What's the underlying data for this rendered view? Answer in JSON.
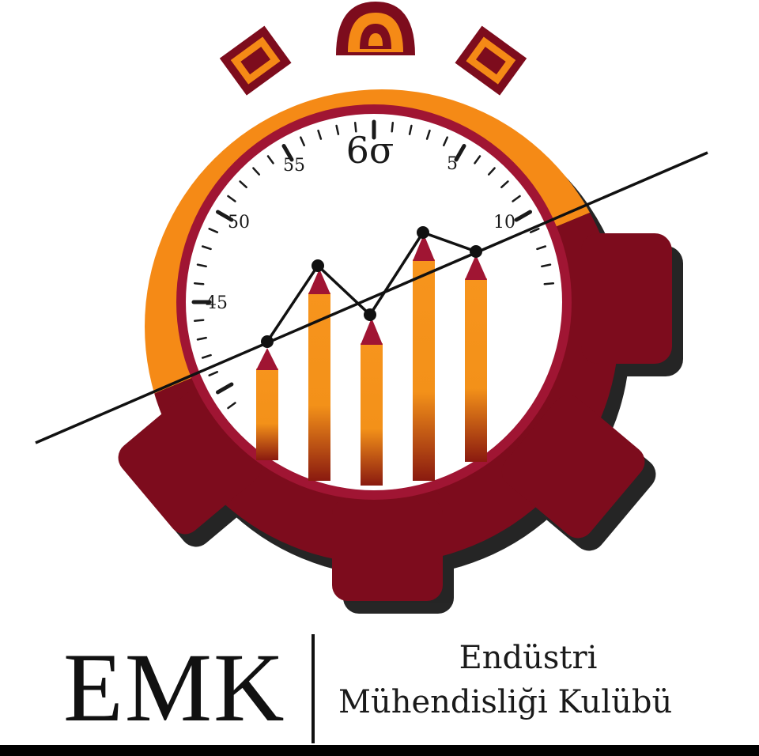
{
  "logo": {
    "dial": {
      "sigma_label": "6σ",
      "tick_labels": [
        "55",
        "5",
        "50",
        "10",
        "45"
      ]
    },
    "colors": {
      "maroon": "#7d0c1d",
      "orange": "#f58a16",
      "bar_orange": "#f7941d",
      "dial_ring": "#a01533",
      "line": "#111111"
    }
  },
  "wordmark": {
    "acronym": "EMK",
    "line1": "Endüstri",
    "line2": "Mühendisliği Kulübü"
  }
}
